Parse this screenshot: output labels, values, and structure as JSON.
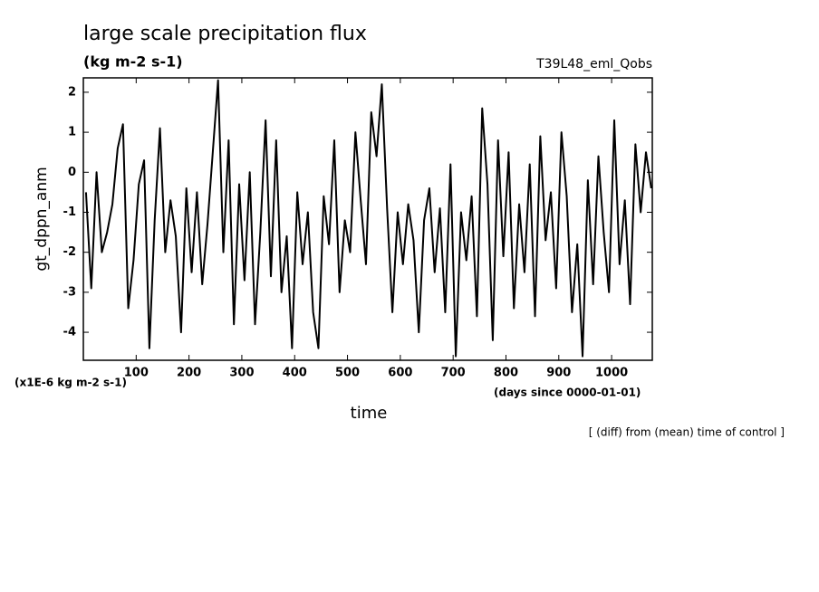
{
  "chart_data": {
    "type": "line",
    "title": "large scale precipitation flux",
    "subtitle": "(kg m-2 s-1)",
    "experiment": "T39L48_eml_Qobs",
    "y_label": "gt_dppn_anm",
    "y_units": "(x1E-6 kg m-2 s-1)",
    "x_units": "(days since 0000-01-01)",
    "x_label": "time",
    "note": "[ (diff) from (mean) time of control ]",
    "xlim": [
      0,
      1077
    ],
    "ylim": [
      -4.7,
      2.36
    ],
    "xticks": [
      100,
      200,
      300,
      400,
      500,
      600,
      700,
      800,
      900,
      1000
    ],
    "yticks": [
      -4,
      -3,
      -2,
      -1,
      0,
      1,
      2
    ],
    "color": "#000000",
    "x": [
      5,
      15,
      25,
      35,
      45,
      55,
      65,
      75,
      85,
      95,
      105,
      115,
      125,
      135,
      145,
      155,
      165,
      175,
      185,
      195,
      205,
      215,
      225,
      235,
      245,
      255,
      265,
      275,
      285,
      295,
      305,
      315,
      325,
      335,
      345,
      355,
      365,
      375,
      385,
      395,
      405,
      415,
      425,
      435,
      445,
      455,
      465,
      475,
      485,
      495,
      505,
      515,
      525,
      535,
      545,
      555,
      565,
      575,
      585,
      595,
      605,
      615,
      625,
      635,
      645,
      655,
      665,
      675,
      685,
      695,
      705,
      715,
      725,
      735,
      745,
      755,
      765,
      775,
      785,
      795,
      805,
      815,
      825,
      835,
      845,
      855,
      865,
      875,
      885,
      895,
      905,
      915,
      925,
      935,
      945,
      955,
      965,
      975,
      985,
      995,
      1005,
      1015,
      1025,
      1035,
      1045,
      1055,
      1065,
      1075
    ],
    "values": [
      -0.5,
      -2.9,
      0.0,
      -2.0,
      -1.5,
      -0.8,
      0.6,
      1.2,
      -3.4,
      -2.2,
      -0.3,
      0.3,
      -4.4,
      -1.2,
      1.1,
      -2.0,
      -0.7,
      -1.6,
      -4.0,
      -0.4,
      -2.5,
      -0.5,
      -2.8,
      -1.3,
      0.5,
      2.3,
      -2.0,
      0.8,
      -3.8,
      -0.3,
      -2.7,
      0.0,
      -3.8,
      -1.5,
      1.3,
      -2.6,
      0.8,
      -3.0,
      -1.6,
      -4.4,
      -0.5,
      -2.3,
      -1.0,
      -3.5,
      -4.4,
      -0.6,
      -1.8,
      0.8,
      -3.0,
      -1.2,
      -2.0,
      1.0,
      -0.7,
      -2.3,
      1.5,
      0.4,
      2.2,
      -0.9,
      -3.5,
      -1.0,
      -2.3,
      -0.8,
      -1.7,
      -4.0,
      -1.2,
      -0.4,
      -2.5,
      -0.9,
      -3.5,
      0.2,
      -4.6,
      -1.0,
      -2.2,
      -0.6,
      -3.6,
      1.6,
      -0.3,
      -4.2,
      0.8,
      -2.1,
      0.5,
      -3.4,
      -0.8,
      -2.5,
      0.2,
      -3.6,
      0.9,
      -1.7,
      -0.5,
      -2.9,
      1.0,
      -0.6,
      -3.5,
      -1.8,
      -4.6,
      -0.2,
      -2.8,
      0.4,
      -1.5,
      -3.0,
      1.3,
      -2.3,
      -0.7,
      -3.3,
      0.7,
      -1.0,
      0.5,
      -0.4
    ]
  }
}
